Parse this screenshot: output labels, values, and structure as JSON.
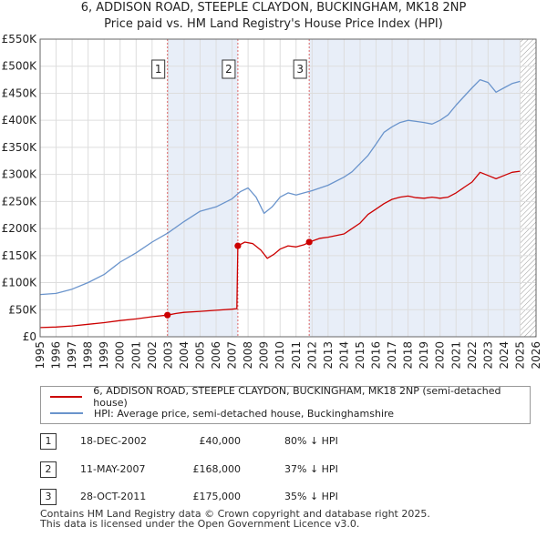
{
  "title": {
    "line1": "6, ADDISON ROAD, STEEPLE CLAYDON, BUCKINGHAM, MK18 2NP",
    "line2": "Price paid vs. HM Land Registry's House Price Index (HPI)"
  },
  "colors": {
    "property": "#cc0000",
    "hpi": "#6a94cc",
    "shade": "#e8eef8",
    "marker_line": "#dd6666",
    "grid": "#dddddd",
    "hatch": "#999999"
  },
  "chart_data": {
    "type": "line",
    "xlim": [
      1995,
      2026
    ],
    "ylim": [
      0,
      550000
    ],
    "x_ticks": [
      "1995",
      "1996",
      "1997",
      "1998",
      "1999",
      "2000",
      "2001",
      "2002",
      "2003",
      "2004",
      "2005",
      "2006",
      "2007",
      "2008",
      "2009",
      "2010",
      "2011",
      "2012",
      "2013",
      "2014",
      "2015",
      "2016",
      "2017",
      "2018",
      "2019",
      "2020",
      "2021",
      "2022",
      "2023",
      "2024",
      "2025",
      "2026"
    ],
    "y_ticks": [
      {
        "value": 0,
        "label": "£0"
      },
      {
        "value": 50000,
        "label": "£50K"
      },
      {
        "value": 100000,
        "label": "£100K"
      },
      {
        "value": 150000,
        "label": "£150K"
      },
      {
        "value": 200000,
        "label": "£200K"
      },
      {
        "value": 250000,
        "label": "£250K"
      },
      {
        "value": 300000,
        "label": "£300K"
      },
      {
        "value": 350000,
        "label": "£350K"
      },
      {
        "value": 400000,
        "label": "£400K"
      },
      {
        "value": 450000,
        "label": "£450K"
      },
      {
        "value": 500000,
        "label": "£500K"
      },
      {
        "value": 550000,
        "label": "£550K"
      }
    ],
    "shaded_ranges": [
      [
        2002.96,
        2007.36
      ],
      [
        2011.82,
        2025.0
      ]
    ],
    "hatched_from": 2025.0,
    "sale_markers": [
      {
        "label": "1",
        "x": 2002.96,
        "y": 40000
      },
      {
        "label": "2",
        "x": 2007.36,
        "y": 168000
      },
      {
        "label": "3",
        "x": 2011.82,
        "y": 175000
      }
    ],
    "series": [
      {
        "name": "6, ADDISON ROAD, STEEPLE CLAYDON, BUCKINGHAM, MK18 2NP (semi-detached house)",
        "x": [
          1995,
          1996,
          1997,
          1998,
          1999,
          2000,
          2001,
          2002,
          2002.96,
          2003.5,
          2004,
          2005,
          2006,
          2007,
          2007.3,
          2007.36,
          2007.8,
          2008.3,
          2008.8,
          2009.2,
          2009.6,
          2010,
          2010.5,
          2011,
          2011.5,
          2011.82,
          2012.5,
          2013,
          2014,
          2014.5,
          2015,
          2015.5,
          2016,
          2016.5,
          2017,
          2017.5,
          2018,
          2018.5,
          2019,
          2019.5,
          2020,
          2020.5,
          2021,
          2021.5,
          2022,
          2022.5,
          2023,
          2023.5,
          2024,
          2024.5,
          2025
        ],
        "values": [
          17000,
          18000,
          20000,
          23000,
          26000,
          30000,
          33000,
          37000,
          40000,
          43000,
          45000,
          47000,
          49000,
          51000,
          52000,
          168000,
          175000,
          172000,
          160000,
          145000,
          152000,
          162000,
          168000,
          166000,
          170000,
          175000,
          182000,
          184000,
          190000,
          200000,
          210000,
          226000,
          236000,
          246000,
          254000,
          258000,
          260000,
          257000,
          256000,
          258000,
          256000,
          258000,
          266000,
          276000,
          286000,
          304000,
          298000,
          292000,
          298000,
          304000,
          306000
        ]
      },
      {
        "name": "HPI: Average price, semi-detached house, Buckinghamshire",
        "x": [
          1995,
          1996,
          1997,
          1998,
          1999,
          2000,
          2001,
          2002,
          2003,
          2004,
          2005,
          2006,
          2007,
          2007.5,
          2008,
          2008.5,
          2009,
          2009.5,
          2010,
          2010.5,
          2011,
          2011.5,
          2012,
          2013,
          2014,
          2014.5,
          2015,
          2015.5,
          2016,
          2016.5,
          2017,
          2017.5,
          2018,
          2018.5,
          2019,
          2019.5,
          2020,
          2020.5,
          2021,
          2021.5,
          2022,
          2022.5,
          2023,
          2023.5,
          2024,
          2024.5,
          2025
        ],
        "values": [
          78000,
          80000,
          88000,
          100000,
          115000,
          138000,
          155000,
          175000,
          192000,
          213000,
          232000,
          240000,
          255000,
          268000,
          275000,
          258000,
          228000,
          240000,
          258000,
          266000,
          262000,
          266000,
          270000,
          280000,
          295000,
          305000,
          320000,
          335000,
          356000,
          378000,
          388000,
          396000,
          400000,
          398000,
          396000,
          393000,
          400000,
          410000,
          428000,
          444000,
          460000,
          475000,
          470000,
          452000,
          460000,
          468000,
          472000
        ]
      }
    ]
  },
  "legend": {
    "property_label": "6, ADDISON ROAD, STEEPLE CLAYDON, BUCKINGHAM, MK18 2NP (semi-detached house)",
    "hpi_label": "HPI: Average price, semi-detached house, Buckinghamshire"
  },
  "sales": [
    {
      "num": "1",
      "date": "18-DEC-2002",
      "price": "£40,000",
      "hpi": "80% ↓ HPI"
    },
    {
      "num": "2",
      "date": "11-MAY-2007",
      "price": "£168,000",
      "hpi": "37% ↓ HPI"
    },
    {
      "num": "3",
      "date": "28-OCT-2011",
      "price": "£175,000",
      "hpi": "35% ↓ HPI"
    }
  ],
  "footer": {
    "line1": "Contains HM Land Registry data © Crown copyright and database right 2025.",
    "line2": "This data is licensed under the Open Government Licence v3.0."
  }
}
